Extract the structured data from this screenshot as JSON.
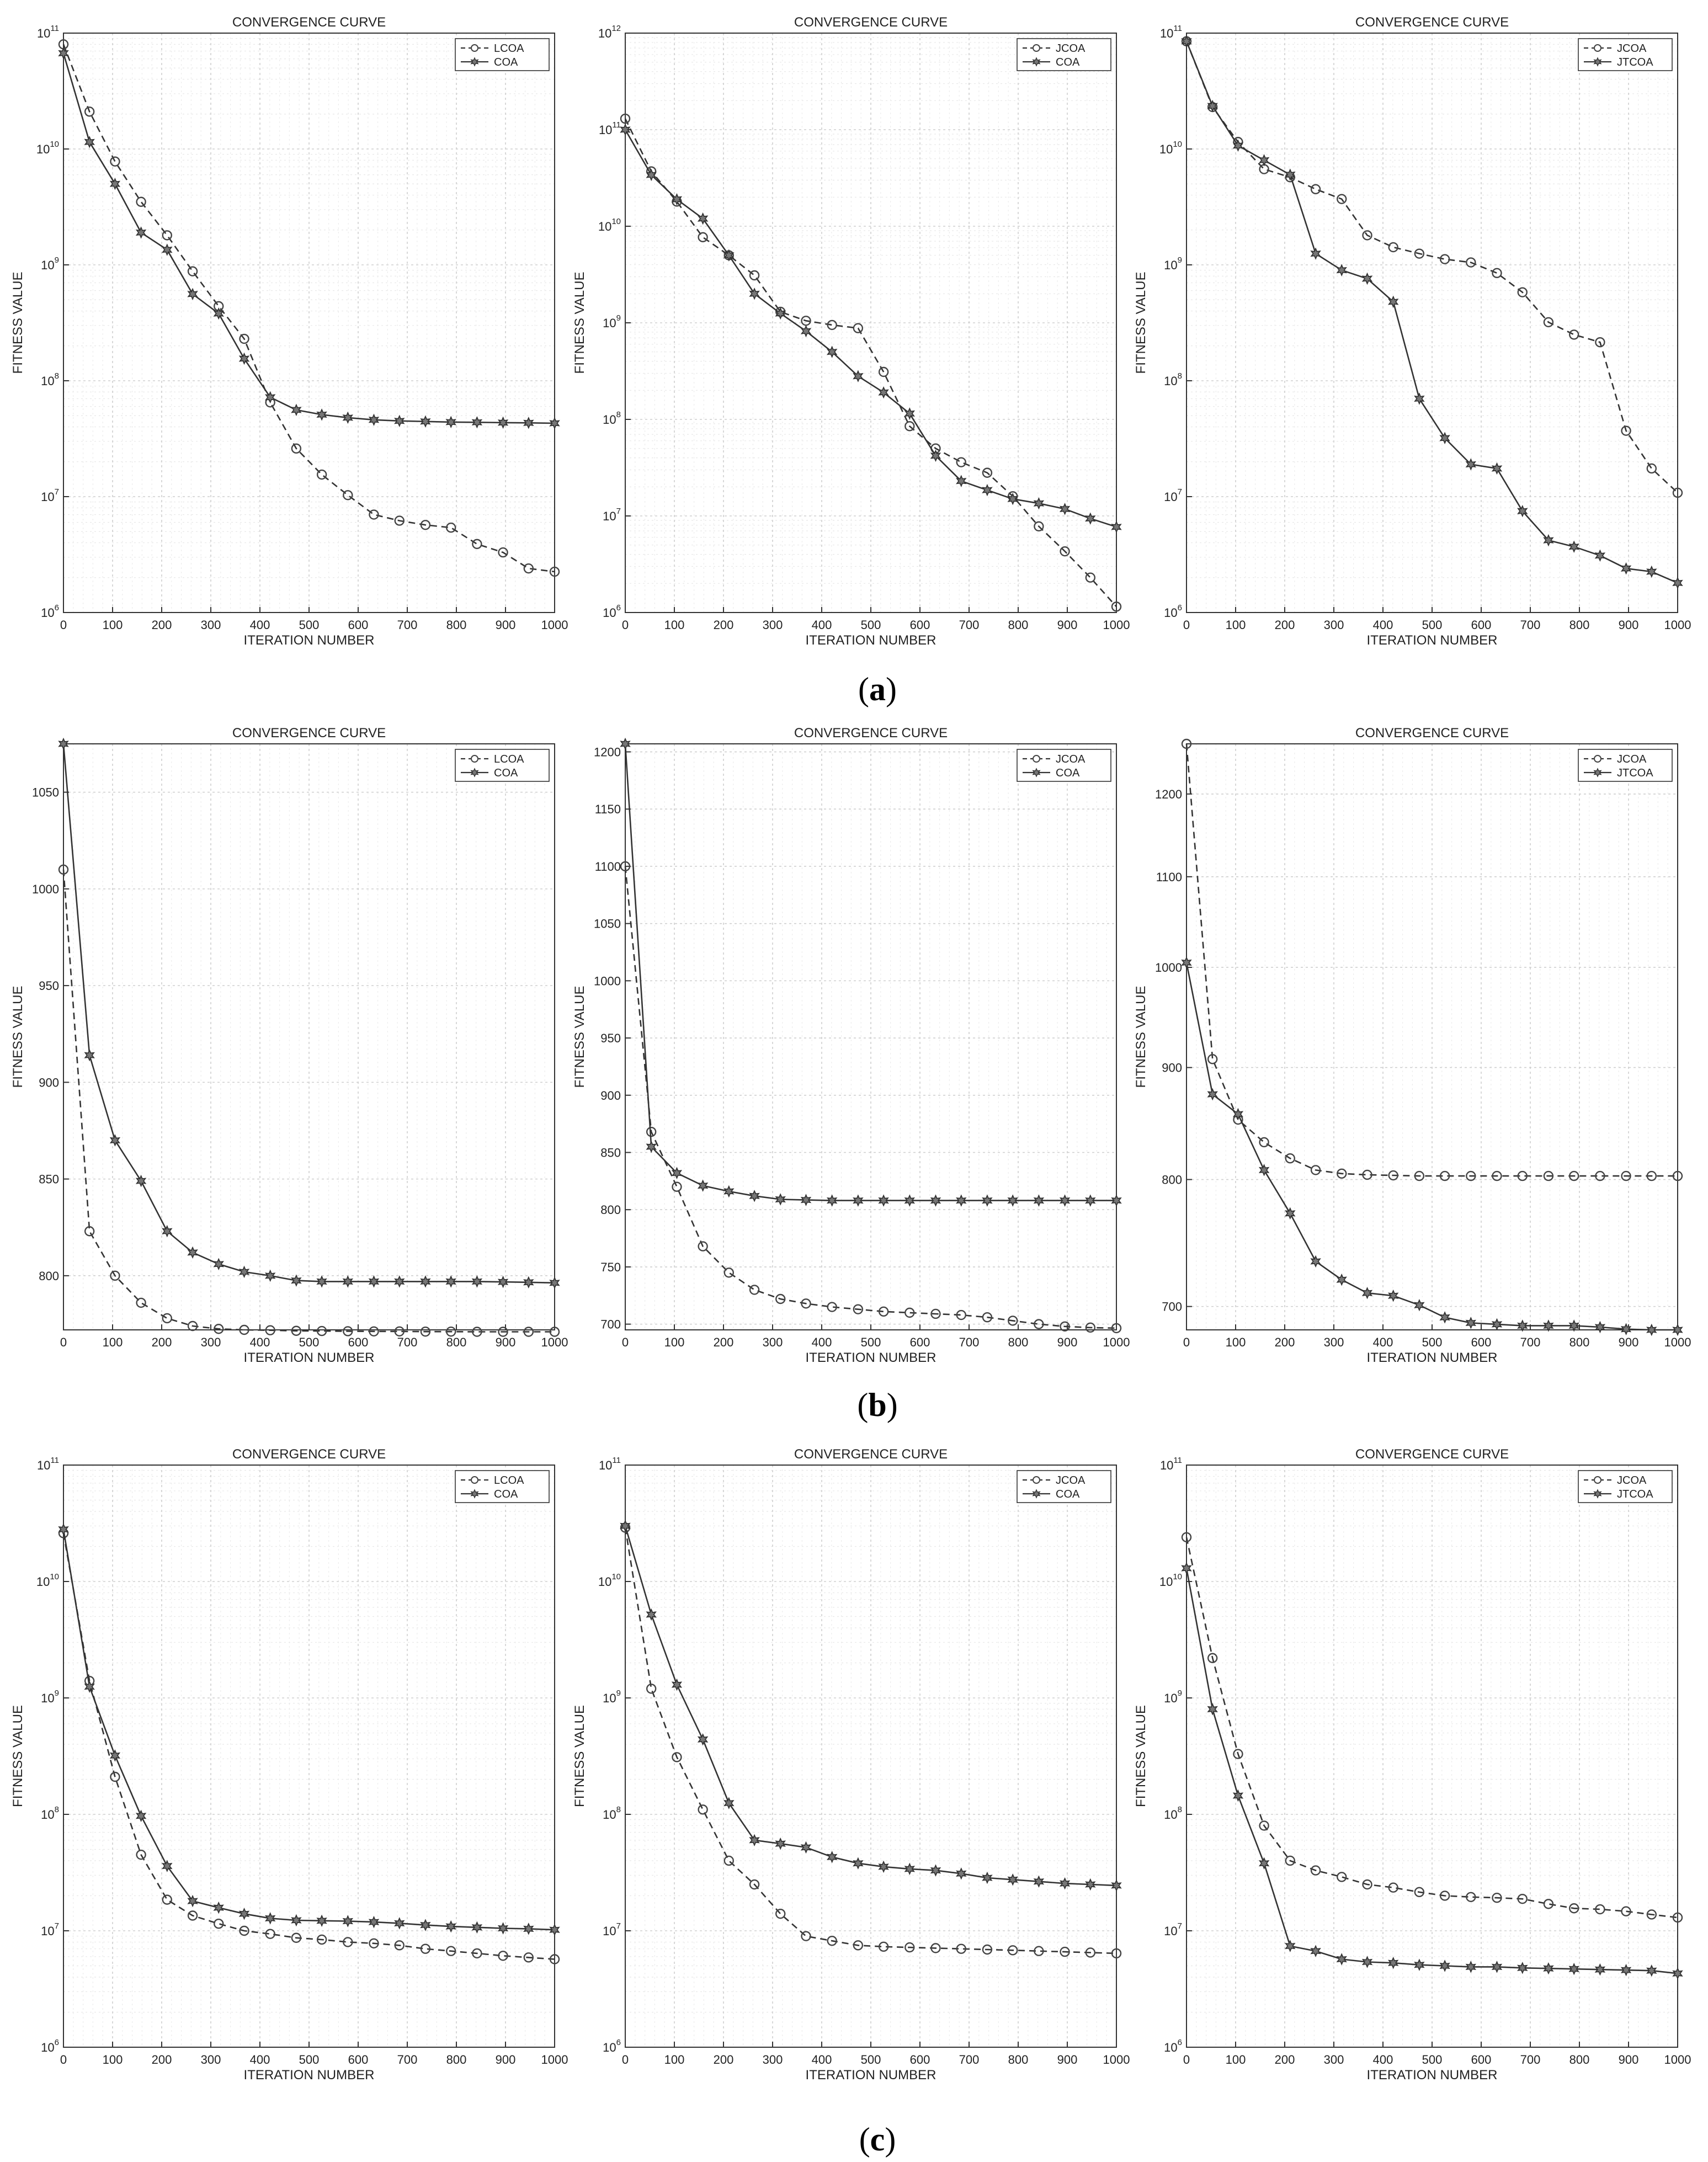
{
  "panel_labels": [
    "a",
    "b",
    "c"
  ],
  "chart_data": [
    {
      "type": "line",
      "row": "a",
      "col": 0,
      "title": "CONVERGENCE CURVE",
      "xlabel": "ITERATION NUMBER",
      "ylabel": "FITNESS VALUE",
      "yscale": "log",
      "xlim": [
        0,
        1000
      ],
      "ylim": [
        1000000,
        100000000000
      ],
      "yticks": [
        1000000,
        10000000,
        100000000,
        1000000000,
        10000000000,
        100000000000
      ],
      "ytick_labels": [
        [
          "10",
          "6"
        ],
        [
          "10",
          "7"
        ],
        [
          "10",
          "8"
        ],
        [
          "10",
          "9"
        ],
        [
          "10",
          "10"
        ],
        [
          "10",
          "11"
        ]
      ],
      "grid": true,
      "legend": "top-right",
      "x": [
        0,
        53,
        105,
        158,
        211,
        263,
        316,
        368,
        421,
        474,
        526,
        579,
        632,
        684,
        737,
        789,
        842,
        895,
        947,
        1000
      ],
      "series": [
        {
          "name": "LCOA",
          "style": "dashed",
          "marker": "circle",
          "values": [
            80000000000,
            21000000000,
            7800000000,
            3500000000,
            1800000000,
            880000000,
            440000000,
            230000000,
            65000000,
            26000000,
            15500000,
            10300000,
            7000000,
            6200000,
            5700000,
            5400000,
            3900000,
            3300000,
            2400000,
            2250000
          ]
        },
        {
          "name": "COA",
          "style": "solid",
          "marker": "star",
          "values": [
            67000000000,
            11500000000,
            5000000000,
            1900000000,
            1350000000,
            560000000,
            380000000,
            155000000,
            72000000,
            56000000,
            51000000,
            48000000,
            46000000,
            45000000,
            44500000,
            44000000,
            43800000,
            43500000,
            43300000,
            43000000
          ]
        }
      ]
    },
    {
      "type": "line",
      "row": "a",
      "col": 1,
      "title": "CONVERGENCE CURVE",
      "xlabel": "ITERATION NUMBER",
      "ylabel": "FITNESS VALUE",
      "yscale": "log",
      "xlim": [
        0,
        1000
      ],
      "ylim": [
        1000000,
        1000000000000
      ],
      "yticks": [
        1000000,
        10000000,
        100000000,
        1000000000,
        10000000000,
        100000000000,
        1000000000000
      ],
      "ytick_labels": [
        [
          "10",
          "6"
        ],
        [
          "10",
          "7"
        ],
        [
          "10",
          "8"
        ],
        [
          "10",
          "9"
        ],
        [
          "10",
          "10"
        ],
        [
          "10",
          "11"
        ],
        [
          "10",
          "12"
        ]
      ],
      "grid": true,
      "legend": "top-right",
      "x": [
        0,
        53,
        105,
        158,
        211,
        263,
        316,
        368,
        421,
        474,
        526,
        579,
        632,
        684,
        737,
        789,
        842,
        895,
        947,
        1000
      ],
      "series": [
        {
          "name": "JCOA",
          "style": "dashed",
          "marker": "circle",
          "values": [
            130000000000,
            37000000000,
            18000000000,
            7700000000,
            5000000000,
            3100000000,
            1300000000,
            1050000000,
            950000000,
            880000000,
            310000000,
            85000000,
            50000000,
            36000000,
            28000000,
            16000000,
            7800000,
            4300000,
            2300000,
            1150000
          ]
        },
        {
          "name": "COA",
          "style": "solid",
          "marker": "star",
          "values": [
            100000000000,
            34000000000,
            19000000000,
            12000000000,
            5000000000,
            2000000000,
            1250000000,
            820000000,
            500000000,
            280000000,
            190000000,
            115000000,
            42000000,
            23000000,
            18500000,
            15000000,
            13500000,
            11800000,
            9400000,
            7700000
          ]
        }
      ]
    },
    {
      "type": "line",
      "row": "a",
      "col": 2,
      "title": "CONVERGENCE CURVE",
      "xlabel": "ITERATION NUMBER",
      "ylabel": "FITNESS VALUE",
      "yscale": "log",
      "xlim": [
        0,
        1000
      ],
      "ylim": [
        1000000,
        100000000000
      ],
      "yticks": [
        1000000,
        10000000,
        100000000,
        1000000000,
        10000000000,
        100000000000
      ],
      "ytick_labels": [
        [
          "10",
          "6"
        ],
        [
          "10",
          "7"
        ],
        [
          "10",
          "8"
        ],
        [
          "10",
          "9"
        ],
        [
          "10",
          "10"
        ],
        [
          "10",
          "11"
        ]
      ],
      "grid": true,
      "legend": "top-right",
      "x": [
        0,
        53,
        105,
        158,
        211,
        263,
        316,
        368,
        421,
        474,
        526,
        579,
        632,
        684,
        737,
        789,
        842,
        895,
        947,
        1000
      ],
      "series": [
        {
          "name": "JCOA",
          "style": "dashed",
          "marker": "circle",
          "values": [
            85000000000,
            23000000000,
            11500000000,
            6700000000,
            5700000000,
            4500000000,
            3700000000,
            1800000000,
            1420000000,
            1250000000,
            1120000000,
            1050000000,
            850000000,
            580000000,
            320000000,
            250000000,
            215000000,
            37000000,
            17500000,
            10800000
          ]
        },
        {
          "name": "JTCOA",
          "style": "solid",
          "marker": "star",
          "values": [
            85000000000,
            23500000000,
            10700000000,
            8000000000,
            6000000000,
            1250000000,
            900000000,
            760000000,
            480000000,
            70000000,
            32000000,
            19000000,
            17500000,
            7500000,
            4200000,
            3700000,
            3100000,
            2400000,
            2250000,
            1800000
          ]
        }
      ]
    },
    {
      "type": "line",
      "row": "b",
      "col": 0,
      "title": "CONVERGENCE CURVE",
      "xlabel": "ITERATION NUMBER",
      "ylabel": "FITNESS VALUE",
      "yscale": "linear",
      "xlim": [
        0,
        1000
      ],
      "ylim": [
        772,
        1075
      ],
      "yticks": [
        800,
        850,
        900,
        950,
        1000,
        1050
      ],
      "grid": true,
      "legend": "top-right",
      "x": [
        0,
        53,
        105,
        158,
        211,
        263,
        316,
        368,
        421,
        474,
        526,
        579,
        632,
        684,
        737,
        789,
        842,
        895,
        947,
        1000
      ],
      "series": [
        {
          "name": "LCOA",
          "style": "dashed",
          "marker": "circle",
          "values": [
            1010,
            823,
            800,
            786,
            778,
            774,
            772.5,
            772,
            771.8,
            771.5,
            771.4,
            771.3,
            771.2,
            771.2,
            771.1,
            771.1,
            771,
            771,
            771,
            771
          ]
        },
        {
          "name": "COA",
          "style": "solid",
          "marker": "star",
          "values": [
            1075,
            914,
            870,
            849,
            823,
            812,
            806,
            802,
            800,
            797.5,
            797,
            797,
            797,
            797,
            797,
            797,
            797,
            796.8,
            796.6,
            796.3
          ]
        }
      ]
    },
    {
      "type": "line",
      "row": "b",
      "col": 1,
      "title": "CONVERGENCE CURVE",
      "xlabel": "ITERATION NUMBER",
      "ylabel": "FITNESS VALUE",
      "yscale": "linear",
      "xlim": [
        0,
        1000
      ],
      "ylim": [
        695,
        1207
      ],
      "yticks": [
        700,
        750,
        800,
        850,
        900,
        950,
        1000,
        1050,
        1100,
        1150,
        1200
      ],
      "grid": true,
      "legend": "top-right",
      "x": [
        0,
        53,
        105,
        158,
        211,
        263,
        316,
        368,
        421,
        474,
        526,
        579,
        632,
        684,
        737,
        789,
        842,
        895,
        947,
        1000
      ],
      "series": [
        {
          "name": "JCOA",
          "style": "dashed",
          "marker": "circle",
          "values": [
            1100,
            868,
            820,
            768,
            745,
            730,
            722,
            718,
            715,
            713,
            711,
            710,
            709,
            708,
            706,
            703,
            700,
            698,
            697,
            696.5
          ]
        },
        {
          "name": "COA",
          "style": "solid",
          "marker": "star",
          "values": [
            1207,
            855,
            832,
            821,
            816,
            812,
            809,
            808.5,
            808,
            808,
            808,
            808,
            808,
            808,
            808,
            808,
            808,
            808,
            808,
            808
          ]
        }
      ]
    },
    {
      "type": "line",
      "row": "b",
      "col": 2,
      "title": "CONVERGENCE CURVE",
      "xlabel": "ITERATION NUMBER",
      "ylabel": "FITNESS VALUE",
      "yscale": "log",
      "xlim": [
        0,
        1000
      ],
      "ylim": [
        683,
        1265
      ],
      "yticks": [
        700,
        800,
        900,
        1000,
        1100,
        1200
      ],
      "grid": true,
      "legend": "top-right",
      "x": [
        0,
        53,
        105,
        158,
        211,
        263,
        316,
        368,
        421,
        474,
        526,
        579,
        632,
        684,
        737,
        789,
        842,
        895,
        947,
        1000
      ],
      "series": [
        {
          "name": "JCOA",
          "style": "dashed",
          "marker": "circle",
          "values": [
            1265,
            908,
            852,
            832,
            818,
            808,
            805,
            804,
            803.5,
            803,
            803,
            803,
            803,
            803,
            803,
            803,
            803,
            803,
            803,
            803
          ]
        },
        {
          "name": "JTCOA",
          "style": "solid",
          "marker": "star",
          "values": [
            1005,
            875,
            857,
            808,
            772,
            734,
            720,
            710,
            708,
            701,
            692,
            688,
            687,
            686,
            686,
            686,
            685,
            683.5,
            683,
            683
          ]
        }
      ]
    },
    {
      "type": "line",
      "row": "c",
      "col": 0,
      "title": "CONVERGENCE CURVE",
      "xlabel": "ITERATION NUMBER",
      "ylabel": "FITNESS VALUE",
      "yscale": "log",
      "xlim": [
        0,
        1000
      ],
      "ylim": [
        1000000,
        100000000000
      ],
      "yticks": [
        1000000,
        10000000,
        100000000,
        1000000000,
        10000000000,
        100000000000
      ],
      "ytick_labels": [
        [
          "10",
          "6"
        ],
        [
          "10",
          "7"
        ],
        [
          "10",
          "8"
        ],
        [
          "10",
          "9"
        ],
        [
          "10",
          "10"
        ],
        [
          "10",
          "11"
        ]
      ],
      "grid": true,
      "legend": "top-right",
      "x": [
        0,
        53,
        105,
        158,
        211,
        263,
        316,
        368,
        421,
        474,
        526,
        579,
        632,
        684,
        737,
        789,
        842,
        895,
        947,
        1000
      ],
      "series": [
        {
          "name": "LCOA",
          "style": "dashed",
          "marker": "circle",
          "values": [
            26000000000,
            1400000000,
            210000000,
            45000000,
            18500000,
            13500000,
            11500000,
            10000000,
            9400000,
            8700000,
            8400000,
            8000000,
            7800000,
            7500000,
            7000000,
            6700000,
            6400000,
            6100000,
            5900000,
            5700000
          ]
        },
        {
          "name": "COA",
          "style": "solid",
          "marker": "star",
          "values": [
            28000000000,
            1250000000,
            320000000,
            97000000,
            36000000,
            18000000,
            15800000,
            14000000,
            12800000,
            12300000,
            12200000,
            12100000,
            11900000,
            11600000,
            11200000,
            10900000,
            10700000,
            10500000,
            10400000,
            10200000
          ]
        }
      ]
    },
    {
      "type": "line",
      "row": "c",
      "col": 1,
      "title": "CONVERGENCE CURVE",
      "xlabel": "ITERATION NUMBER",
      "ylabel": "FITNESS VALUE",
      "yscale": "log",
      "xlim": [
        0,
        1000
      ],
      "ylim": [
        1000000,
        100000000000
      ],
      "yticks": [
        1000000,
        10000000,
        100000000,
        1000000000,
        10000000000,
        100000000000
      ],
      "ytick_labels": [
        [
          "10",
          "6"
        ],
        [
          "10",
          "7"
        ],
        [
          "10",
          "8"
        ],
        [
          "10",
          "9"
        ],
        [
          "10",
          "10"
        ],
        [
          "10",
          "11"
        ]
      ],
      "grid": true,
      "legend": "top-right",
      "x": [
        0,
        53,
        105,
        158,
        211,
        263,
        316,
        368,
        421,
        474,
        526,
        579,
        632,
        684,
        737,
        789,
        842,
        895,
        947,
        1000
      ],
      "series": [
        {
          "name": "JCOA",
          "style": "dashed",
          "marker": "circle",
          "values": [
            29000000000,
            1200000000,
            310000000,
            110000000,
            40000000,
            25000000,
            14000000,
            9000000,
            8200000,
            7500000,
            7300000,
            7200000,
            7100000,
            7000000,
            6900000,
            6800000,
            6700000,
            6600000,
            6500000,
            6400000
          ]
        },
        {
          "name": "COA",
          "style": "solid",
          "marker": "star",
          "values": [
            30000000000,
            5200000000,
            1300000000,
            440000000,
            125000000,
            60000000,
            56000000,
            52000000,
            43000000,
            38000000,
            35500000,
            34000000,
            33000000,
            31000000,
            28500000,
            27500000,
            26500000,
            25500000,
            25000000,
            24500000
          ]
        }
      ]
    },
    {
      "type": "line",
      "row": "c",
      "col": 2,
      "title": "CONVERGENCE CURVE",
      "xlabel": "ITERATION NUMBER",
      "ylabel": "FITNESS VALUE",
      "yscale": "log",
      "xlim": [
        0,
        1000
      ],
      "ylim": [
        1000000,
        100000000000
      ],
      "yticks": [
        1000000,
        10000000,
        100000000,
        1000000000,
        10000000000,
        100000000000
      ],
      "ytick_labels": [
        [
          "10",
          "6"
        ],
        [
          "10",
          "7"
        ],
        [
          "10",
          "8"
        ],
        [
          "10",
          "9"
        ],
        [
          "10",
          "10"
        ],
        [
          "10",
          "11"
        ]
      ],
      "grid": true,
      "legend": "top-right",
      "x": [
        0,
        53,
        105,
        158,
        211,
        263,
        316,
        368,
        421,
        474,
        526,
        579,
        632,
        684,
        737,
        789,
        842,
        895,
        947,
        1000
      ],
      "series": [
        {
          "name": "JCOA",
          "style": "dashed",
          "marker": "circle",
          "values": [
            24000000000,
            2200000000,
            330000000,
            80000000,
            40000000,
            33000000,
            29000000,
            25000000,
            23500000,
            21500000,
            20000000,
            19500000,
            19200000,
            18800000,
            17000000,
            15600000,
            15300000,
            14700000,
            13800000,
            13000000
          ]
        },
        {
          "name": "JTCOA",
          "style": "solid",
          "marker": "star",
          "values": [
            13000000000,
            800000000,
            145000000,
            38000000,
            7400000,
            6700000,
            5700000,
            5400000,
            5300000,
            5100000,
            5000000,
            4900000,
            4900000,
            4800000,
            4750000,
            4700000,
            4650000,
            4600000,
            4550000,
            4300000
          ]
        }
      ]
    }
  ]
}
